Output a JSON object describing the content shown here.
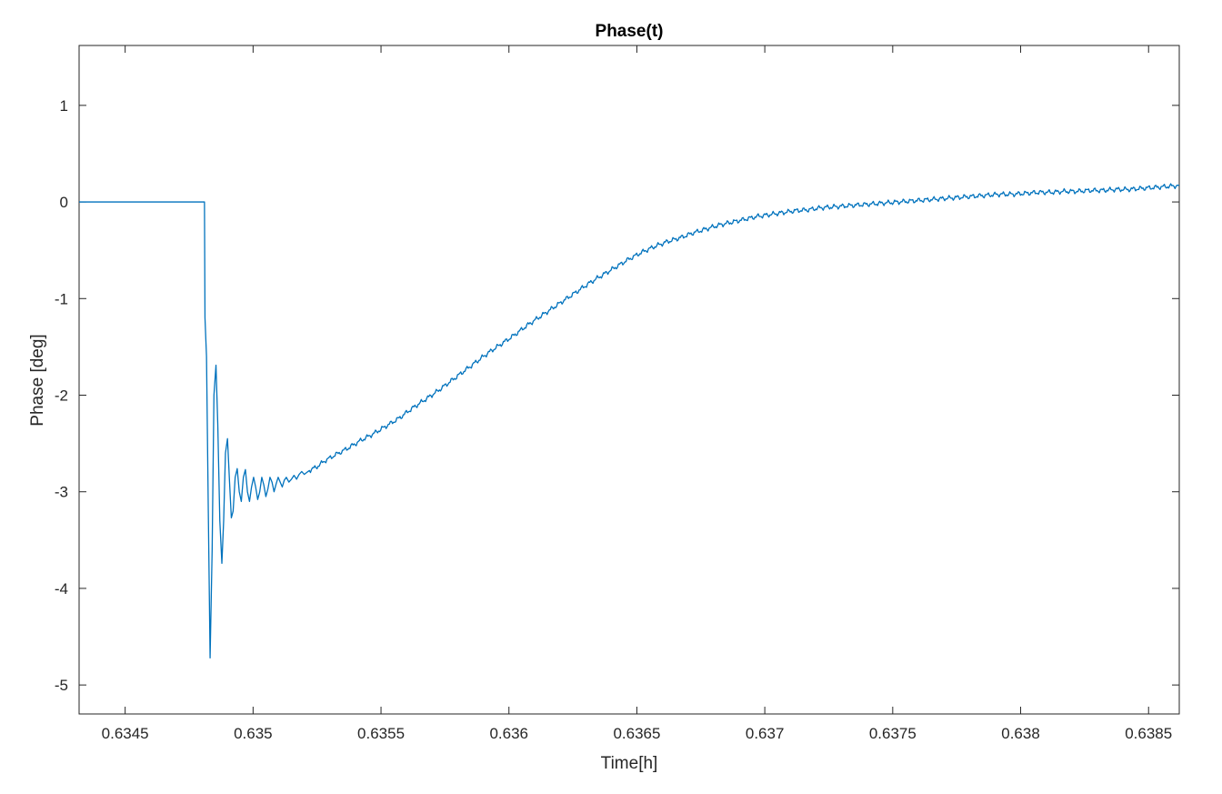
{
  "chart_data": {
    "type": "line",
    "title": "Phase(t)",
    "xlabel": "Time[h]",
    "ylabel": "Phase [deg]",
    "xlim": [
      0.63432,
      0.63862
    ],
    "ylim": [
      -5.3,
      1.62
    ],
    "xticks": [
      0.6345,
      0.635,
      0.6355,
      0.636,
      0.6365,
      0.637,
      0.6375,
      0.638,
      0.6385
    ],
    "xtick_labels": [
      "0.6345",
      "0.635",
      "0.6355",
      "0.636",
      "0.6365",
      "0.637",
      "0.6375",
      "0.638",
      "0.6385"
    ],
    "yticks": [
      1,
      0,
      -1,
      -2,
      -3,
      -4,
      -5
    ],
    "ytick_labels": [
      "1",
      "0",
      "-1",
      "-2",
      "-3",
      "-4",
      "-5"
    ],
    "grid": false,
    "line_color": "#0072BD",
    "series": [
      {
        "x": [
          0.63432,
          0.63481,
          0.634812,
          0.634818,
          0.634825,
          0.634832,
          0.63484,
          0.634847,
          0.634855,
          0.634862,
          0.63487,
          0.634878,
          0.634885,
          0.634892,
          0.6349,
          0.634908,
          0.634915,
          0.634922,
          0.63493,
          0.634938,
          0.634946,
          0.634954,
          0.634962,
          0.63497,
          0.634978,
          0.634986,
          0.634994,
          0.635002,
          0.63501,
          0.635018,
          0.635026,
          0.635034,
          0.635042,
          0.63505,
          0.635058,
          0.635066,
          0.635074,
          0.635082,
          0.63509,
          0.635098,
          0.635106,
          0.635114,
          0.635122,
          0.63513,
          0.63514,
          0.63515,
          0.63516,
          0.63517,
          0.63518,
          0.63519,
          0.6352,
          0.63522,
          0.63525,
          0.63528,
          0.63532,
          0.63537,
          0.63542,
          0.63547,
          0.63552,
          0.63557,
          0.63562,
          0.63567,
          0.63572,
          0.63577,
          0.63582,
          0.63587,
          0.63592,
          0.63597,
          0.63602,
          0.63607,
          0.63612,
          0.63617,
          0.63622,
          0.63627,
          0.63632,
          0.63637,
          0.63642,
          0.63647,
          0.63652,
          0.63657,
          0.63662,
          0.63667,
          0.63672,
          0.63677,
          0.63682,
          0.63687,
          0.63692,
          0.63697,
          0.63702,
          0.63707,
          0.63712,
          0.63717,
          0.63722,
          0.63727,
          0.63732,
          0.63737,
          0.63742,
          0.63747,
          0.63752,
          0.63757,
          0.63762,
          0.63767,
          0.63772,
          0.63777,
          0.63782,
          0.63787,
          0.63792,
          0.63797,
          0.63802,
          0.63807,
          0.63812,
          0.63817,
          0.63822,
          0.63827,
          0.63832,
          0.63837,
          0.63842,
          0.63847,
          0.63852,
          0.63857,
          0.63862
        ],
        "y": [
          0.0,
          0.0,
          -1.2,
          -1.6,
          -3.2,
          -4.72,
          -3.6,
          -2.0,
          -1.69,
          -2.3,
          -3.3,
          -3.74,
          -3.3,
          -2.6,
          -2.45,
          -2.9,
          -3.27,
          -3.2,
          -2.85,
          -2.76,
          -3.0,
          -3.1,
          -2.85,
          -2.77,
          -3.0,
          -3.1,
          -2.95,
          -2.85,
          -2.95,
          -3.08,
          -3.0,
          -2.85,
          -2.93,
          -3.05,
          -2.97,
          -2.85,
          -2.9,
          -3.0,
          -2.92,
          -2.85,
          -2.9,
          -2.95,
          -2.88,
          -2.85,
          -2.9,
          -2.87,
          -2.83,
          -2.87,
          -2.82,
          -2.79,
          -2.82,
          -2.78,
          -2.74,
          -2.68,
          -2.62,
          -2.55,
          -2.47,
          -2.4,
          -2.32,
          -2.24,
          -2.14,
          -2.05,
          -1.96,
          -1.86,
          -1.76,
          -1.66,
          -1.56,
          -1.47,
          -1.38,
          -1.28,
          -1.19,
          -1.1,
          -1.01,
          -0.92,
          -0.83,
          -0.75,
          -0.67,
          -0.59,
          -0.52,
          -0.46,
          -0.41,
          -0.37,
          -0.32,
          -0.28,
          -0.24,
          -0.21,
          -0.18,
          -0.15,
          -0.13,
          -0.11,
          -0.09,
          -0.08,
          -0.06,
          -0.05,
          -0.04,
          -0.03,
          -0.02,
          -0.01,
          0.0,
          0.01,
          0.02,
          0.03,
          0.04,
          0.05,
          0.06,
          0.07,
          0.08,
          0.08,
          0.09,
          0.1,
          0.1,
          0.11,
          0.11,
          0.12,
          0.12,
          0.13,
          0.13,
          0.14,
          0.15,
          0.16,
          0.17
        ]
      }
    ]
  }
}
